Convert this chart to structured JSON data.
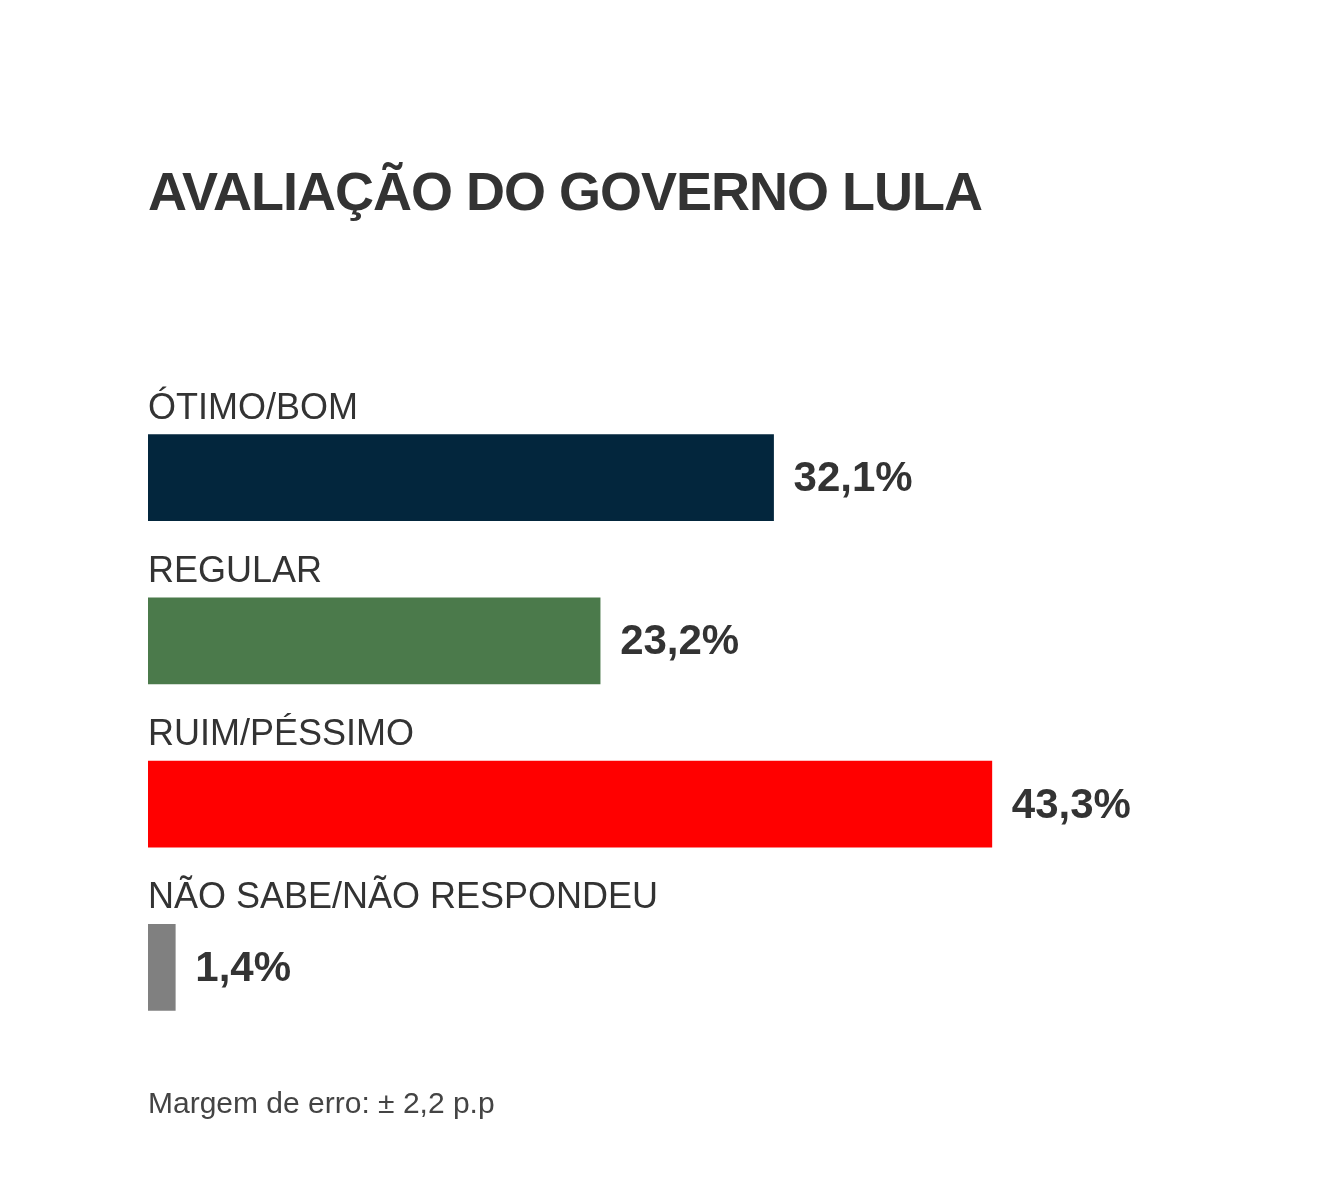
{
  "chart_data": {
    "type": "bar",
    "orientation": "horizontal",
    "title": "AVALIAÇÃO DO GOVERNO LULA",
    "categories": [
      "ÓTIMO/BOM",
      "REGULAR",
      "RUIM/PÉSSIMO",
      "NÃO SABE/NÃO RESPONDEU"
    ],
    "values": [
      32.1,
      23.2,
      43.3,
      1.4
    ],
    "colors": [
      "#03263d",
      "#4b7a4b",
      "#ff0000",
      "#808080"
    ],
    "value_labels": [
      "32,1%",
      "23,2%",
      "43,3%",
      "1,4%"
    ],
    "annotations": [
      "Margem de erro: ± 2,2 p.p"
    ]
  }
}
